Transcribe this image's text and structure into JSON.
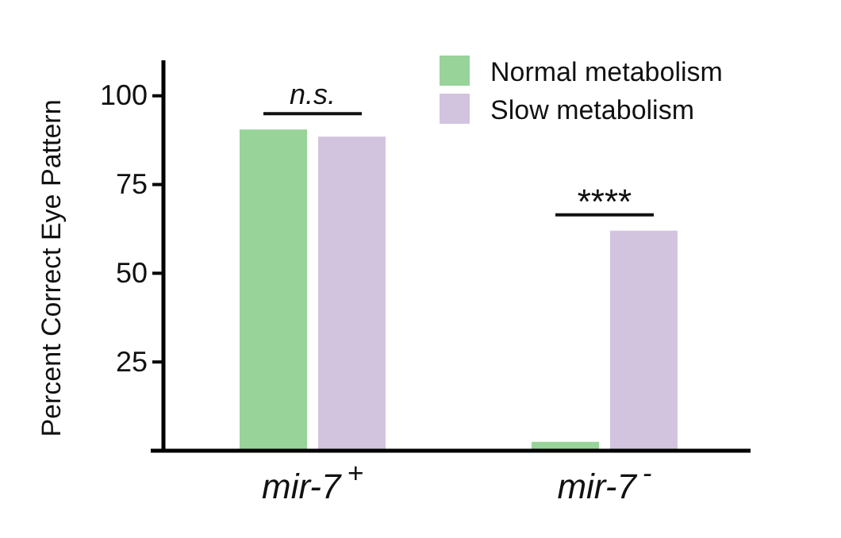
{
  "chart_data": {
    "type": "bar",
    "ylabel": "Percent Correct Eye Pattern",
    "categories": [
      "mir-7$^{+}$",
      "mir-7$^{-}$"
    ],
    "series": [
      {
        "name": "Normal metabolism",
        "color": "#98d39a",
        "values": [
          90.5,
          2.5
        ]
      },
      {
        "name": "Slow metabolism",
        "color": "#d2c4df",
        "values": [
          88.5,
          62
        ]
      }
    ],
    "ylim": [
      0,
      110
    ],
    "yticks": [
      25,
      50,
      75,
      100
    ],
    "legend": "top right",
    "annotations": [
      "n.s.",
      "****"
    ]
  }
}
